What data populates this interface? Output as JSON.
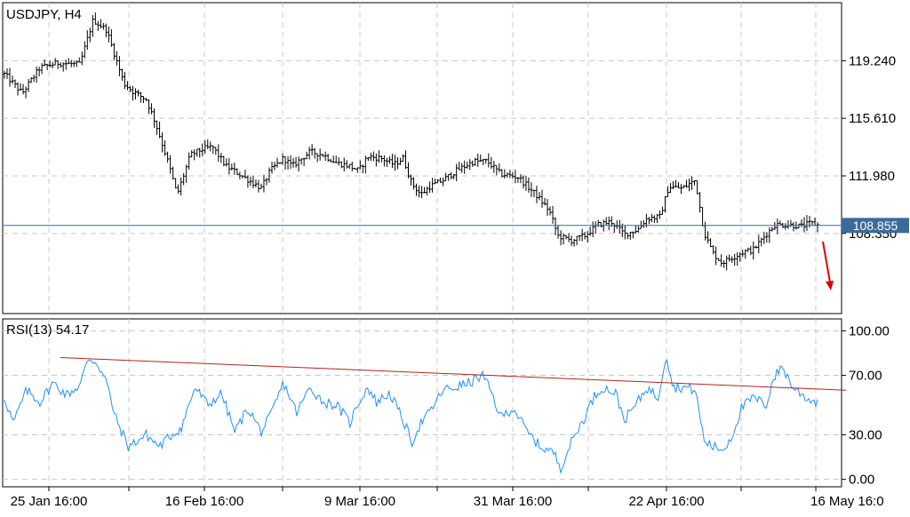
{
  "chart_data": [
    {
      "type": "candlestick",
      "title": "USDJPY, H4",
      "symbol": "USDJPY",
      "timeframe": "H4",
      "ylim": [
        103.3,
        122.9
      ],
      "yticks": [
        "119.240",
        "115.610",
        "111.980",
        "108.350"
      ],
      "current_price": "108.855",
      "x_tick_labels": [
        "25 Jan 16:00",
        "16 Feb 16:00",
        "9 Mar 16:00",
        "31 Mar 16:00",
        "22 Apr 16:00",
        "16 May 16:0"
      ],
      "grid": true,
      "close_path": [
        [
          0,
          118.4
        ],
        [
          20,
          117.2
        ],
        [
          40,
          118.8
        ],
        [
          60,
          119.1
        ],
        [
          85,
          119.0
        ],
        [
          100,
          121.8
        ],
        [
          115,
          121.2
        ],
        [
          125,
          119.5
        ],
        [
          135,
          117.8
        ],
        [
          145,
          117.3
        ],
        [
          160,
          116.8
        ],
        [
          170,
          115.4
        ],
        [
          185,
          112.8
        ],
        [
          195,
          110.8
        ],
        [
          210,
          113.3
        ],
        [
          225,
          113.7
        ],
        [
          235,
          113.8
        ],
        [
          250,
          112.6
        ],
        [
          265,
          112.1
        ],
        [
          290,
          111.2
        ],
        [
          300,
          112.3
        ],
        [
          315,
          113.1
        ],
        [
          325,
          112.6
        ],
        [
          345,
          113.5
        ],
        [
          360,
          113.3
        ],
        [
          375,
          112.8
        ],
        [
          390,
          112.6
        ],
        [
          400,
          112.3
        ],
        [
          410,
          113.2
        ],
        [
          425,
          113.1
        ],
        [
          440,
          112.7
        ],
        [
          450,
          113.1
        ],
        [
          460,
          111.5
        ],
        [
          470,
          110.8
        ],
        [
          480,
          111.3
        ],
        [
          495,
          111.7
        ],
        [
          510,
          112.3
        ],
        [
          530,
          112.9
        ],
        [
          545,
          112.9
        ],
        [
          560,
          112.1
        ],
        [
          580,
          111.9
        ],
        [
          600,
          110.8
        ],
        [
          615,
          109.8
        ],
        [
          625,
          108.2
        ],
        [
          640,
          107.9
        ],
        [
          655,
          108.2
        ],
        [
          670,
          108.9
        ],
        [
          685,
          109.1
        ],
        [
          700,
          108.3
        ],
        [
          715,
          108.6
        ],
        [
          725,
          109.3
        ],
        [
          740,
          109.4
        ],
        [
          750,
          111.3
        ],
        [
          765,
          111.2
        ],
        [
          780,
          111.7
        ],
        [
          790,
          108.4
        ],
        [
          800,
          107.1
        ],
        [
          810,
          106.5
        ],
        [
          820,
          106.8
        ],
        [
          835,
          107.2
        ],
        [
          845,
          107.3
        ],
        [
          860,
          108.3
        ],
        [
          870,
          108.9
        ],
        [
          885,
          108.9
        ],
        [
          900,
          108.8
        ],
        [
          910,
          109.0
        ],
        [
          918,
          108.9
        ]
      ]
    },
    {
      "type": "line",
      "title": "RSI(13) 54.17",
      "indicator": "RSI(13)",
      "value": "54.17",
      "ylim": [
        -5,
        108
      ],
      "yticks": [
        "100.00",
        "70.00",
        "30.00",
        "0.00"
      ],
      "color": "#1e90ff",
      "rsi_path": [
        [
          0,
          55
        ],
        [
          10,
          38
        ],
        [
          25,
          60
        ],
        [
          40,
          52
        ],
        [
          55,
          65
        ],
        [
          70,
          57
        ],
        [
          85,
          63
        ],
        [
          95,
          82
        ],
        [
          105,
          78
        ],
        [
          115,
          66
        ],
        [
          125,
          42
        ],
        [
          140,
          22
        ],
        [
          160,
          30
        ],
        [
          175,
          22
        ],
        [
          185,
          28
        ],
        [
          200,
          35
        ],
        [
          215,
          62
        ],
        [
          230,
          50
        ],
        [
          245,
          58
        ],
        [
          260,
          32
        ],
        [
          275,
          48
        ],
        [
          290,
          32
        ],
        [
          300,
          42
        ],
        [
          315,
          65
        ],
        [
          330,
          45
        ],
        [
          345,
          62
        ],
        [
          360,
          52
        ],
        [
          375,
          50
        ],
        [
          390,
          38
        ],
        [
          400,
          52
        ],
        [
          410,
          62
        ],
        [
          420,
          52
        ],
        [
          435,
          58
        ],
        [
          450,
          40
        ],
        [
          460,
          25
        ],
        [
          470,
          38
        ],
        [
          480,
          45
        ],
        [
          495,
          60
        ],
        [
          510,
          62
        ],
        [
          525,
          65
        ],
        [
          540,
          70
        ],
        [
          550,
          58
        ],
        [
          560,
          42
        ],
        [
          575,
          48
        ],
        [
          590,
          32
        ],
        [
          605,
          22
        ],
        [
          620,
          18
        ],
        [
          628,
          8
        ],
        [
          640,
          25
        ],
        [
          655,
          42
        ],
        [
          665,
          55
        ],
        [
          675,
          62
        ],
        [
          690,
          58
        ],
        [
          700,
          40
        ],
        [
          715,
          52
        ],
        [
          725,
          62
        ],
        [
          738,
          55
        ],
        [
          747,
          85
        ],
        [
          755,
          62
        ],
        [
          768,
          62
        ],
        [
          780,
          60
        ],
        [
          790,
          26
        ],
        [
          800,
          22
        ],
        [
          812,
          20
        ],
        [
          822,
          30
        ],
        [
          832,
          48
        ],
        [
          845,
          55
        ],
        [
          860,
          50
        ],
        [
          868,
          68
        ],
        [
          878,
          76
        ],
        [
          890,
          62
        ],
        [
          905,
          55
        ],
        [
          915,
          52
        ],
        [
          920,
          54
        ]
      ],
      "trendline": {
        "x": [
          68,
          952
        ],
        "y": [
          82,
          60
        ],
        "color": "#b22222"
      }
    }
  ]
}
